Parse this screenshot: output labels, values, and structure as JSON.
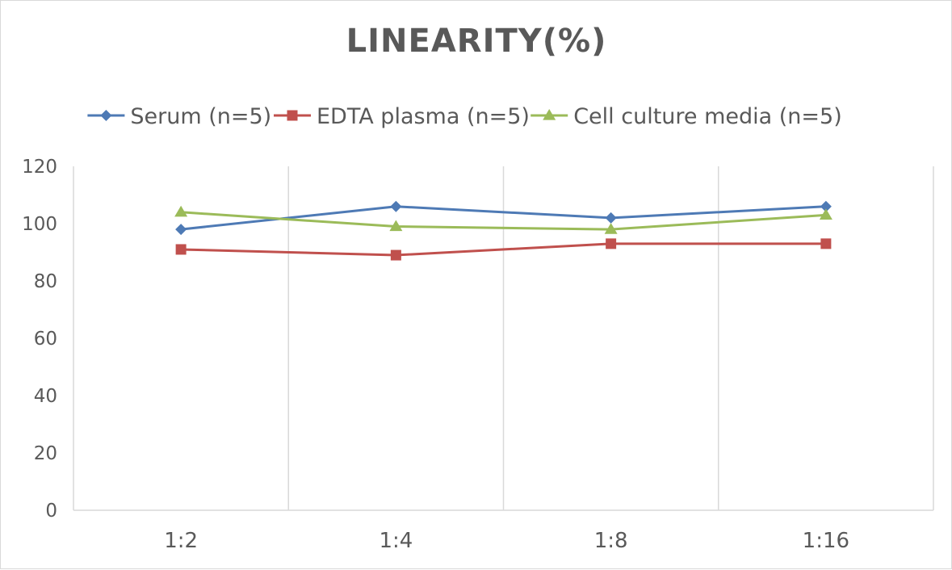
{
  "chart_data": {
    "type": "line",
    "title": "LINEARITY(%)",
    "xlabel": "",
    "ylabel": "",
    "categories": [
      "1:2",
      "1:4",
      "1:8",
      "1:16"
    ],
    "ylim": [
      0,
      120
    ],
    "yticks": [
      0,
      20,
      40,
      60,
      80,
      100,
      120
    ],
    "grid": "vertical",
    "legend_position": "top",
    "series": [
      {
        "name": "Serum (n=5)",
        "values": [
          98,
          106,
          102,
          106
        ],
        "color": "#4e7ab5",
        "marker": "diamond"
      },
      {
        "name": "EDTA plasma (n=5)",
        "values": [
          91,
          89,
          93,
          93
        ],
        "color": "#c0504d",
        "marker": "square"
      },
      {
        "name": "Cell culture media (n=5)",
        "values": [
          104,
          99,
          98,
          103
        ],
        "color": "#9bbb59",
        "marker": "triangle"
      }
    ]
  }
}
